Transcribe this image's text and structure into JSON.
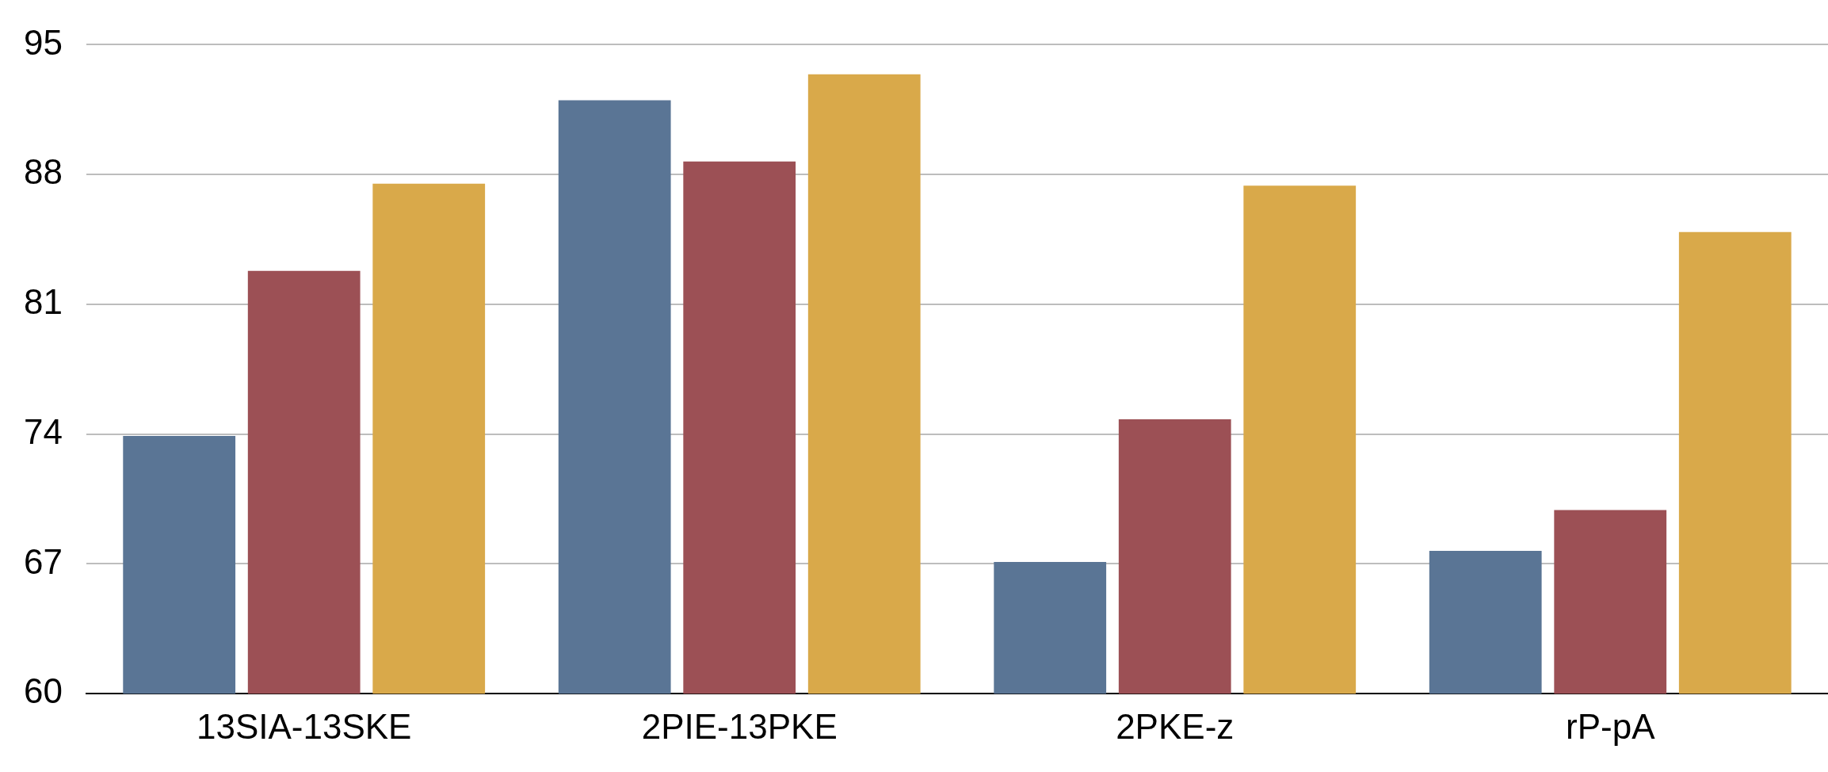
{
  "chart_data": {
    "type": "bar",
    "categories": [
      "13SIA-13SKE",
      "2PIE-13PKE",
      "2PKE-z",
      "rP-pA"
    ],
    "series": [
      {
        "color": "#5a7595",
        "values": [
          73.9,
          92.0,
          67.1,
          67.7
        ]
      },
      {
        "color": "#9c5055",
        "values": [
          82.8,
          88.7,
          74.8,
          69.9
        ]
      },
      {
        "color": "#d9a94a",
        "values": [
          87.5,
          93.4,
          87.4,
          84.9
        ]
      }
    ],
    "ylim": [
      60,
      95
    ],
    "yticks": [
      60,
      67,
      74,
      81,
      88,
      95
    ],
    "grid": "y",
    "legend": false
  }
}
